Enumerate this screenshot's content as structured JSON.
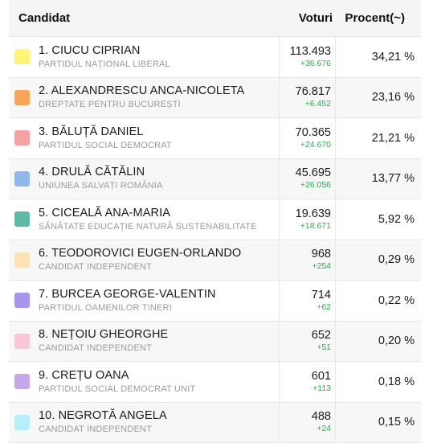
{
  "header": {
    "candidate": "Candidat",
    "votes": "Voturi",
    "percent": "Procent(~)"
  },
  "rows": [
    {
      "name": "1. CIUCU CIPRIAN",
      "party": "PARTIDUL NAȚIONAL LIBERAL",
      "votes": "113.493",
      "delta": "+36.676",
      "percent": "34,21 %",
      "color": "#fff47a"
    },
    {
      "name": "2. ALEXANDRESCU ANCA-NICOLETA",
      "party": "DREPTATE PENTRU BUCUREȘTI",
      "votes": "76.817",
      "delta": "+6.452",
      "percent": "23,16 %",
      "color": "#f5a55c"
    },
    {
      "name": "3. BĂLUȚĂ DANIEL",
      "party": "PARTIDUL SOCIAL DEMOCRAT",
      "votes": "70.365",
      "delta": "+24.670",
      "percent": "21,21 %",
      "color": "#f4a3a3"
    },
    {
      "name": "4. DRULĂ CĂTĂLIN",
      "party": "UNIUNEA SALVAȚI ROMÂNIA",
      "votes": "45.695",
      "delta": "+26.056",
      "percent": "13,77 %",
      "color": "#8fb9ea"
    },
    {
      "name": "5. CICEALĂ ANA-MARIA",
      "party": "SĂNĂTATE EDUCAȚIE NATURĂ SUSTENABILITATE",
      "votes": "19.639",
      "delta": "+18.671",
      "percent": "5,92 %",
      "color": "#5fb9a6"
    },
    {
      "name": "6. TEODOROVICI EUGEN-ORLANDO",
      "party": "CANDIDAT INDEPENDENT",
      "votes": "968",
      "delta": "+254",
      "percent": "0,29 %",
      "color": "#fde2b3"
    },
    {
      "name": "7. BURCEA GEORGE-VALENTIN",
      "party": "PARTIDUL OAMENILOR TINERI",
      "votes": "714",
      "delta": "+62",
      "percent": "0,22 %",
      "color": "#a796ec"
    },
    {
      "name": "8. NEȚOIU GHEORGHE",
      "party": "CANDIDAT INDEPENDENT",
      "votes": "652",
      "delta": "+51",
      "percent": "0,20 %",
      "color": "#fbc6d6"
    },
    {
      "name": "9. CREȚU OANA",
      "party": "PARTIDUL SOCIAL DEMOCRAT UNIT",
      "votes": "601",
      "delta": "+113",
      "percent": "0,18 %",
      "color": "#c6a8ea"
    },
    {
      "name": "10. NEGROTĂ ANGELA",
      "party": "CANDIDAT INDEPENDENT",
      "votes": "488",
      "delta": "+24",
      "percent": "0,15 %",
      "color": "#b6eff8"
    }
  ]
}
